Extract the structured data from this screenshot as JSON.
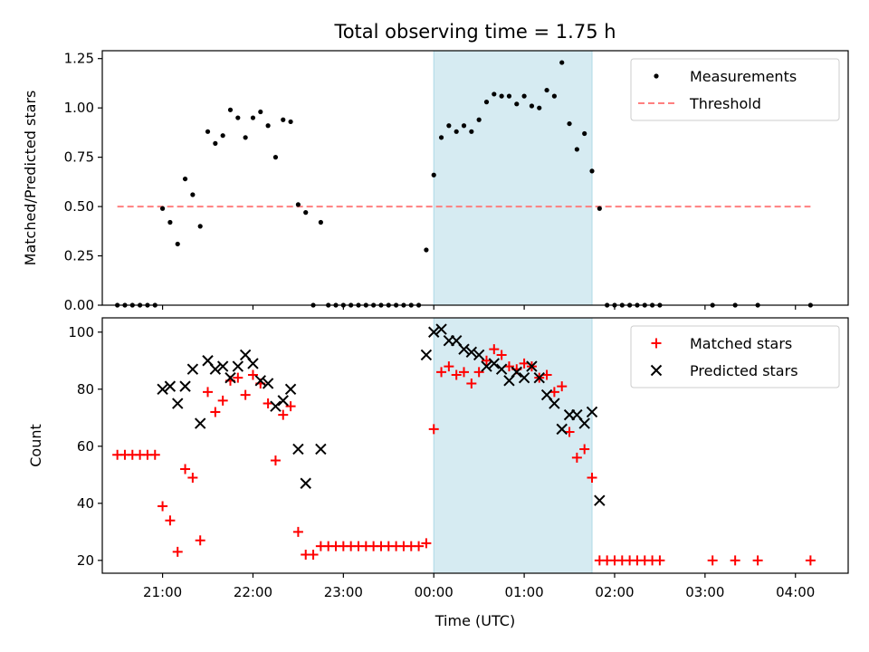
{
  "chart_data": [
    {
      "type": "scatter",
      "title": "Total observing time = 1.75 h",
      "ylabel": "Matched/Predicted stars",
      "xlim": [
        "20:20",
        "04:35"
      ],
      "ylim": [
        0,
        1.29
      ],
      "yticks": [
        "0.00",
        "0.25",
        "0.50",
        "0.75",
        "1.00",
        "1.25"
      ],
      "shaded_interval": [
        "00:00",
        "01:45"
      ],
      "shade_color": "#add8e6",
      "grid": false,
      "legend_position": "top-right",
      "legend": [
        "Measurements",
        "Threshold"
      ],
      "series": [
        {
          "name": "Measurements",
          "marker": "dot",
          "color": "#000000",
          "points": [
            [
              "20:30",
              0
            ],
            [
              "20:35",
              0
            ],
            [
              "20:40",
              0
            ],
            [
              "20:45",
              0
            ],
            [
              "20:50",
              0
            ],
            [
              "20:55",
              0
            ],
            [
              "21:00",
              0.49
            ],
            [
              "21:05",
              0.42
            ],
            [
              "21:10",
              0.31
            ],
            [
              "21:15",
              0.64
            ],
            [
              "21:20",
              0.56
            ],
            [
              "21:25",
              0.4
            ],
            [
              "21:30",
              0.88
            ],
            [
              "21:35",
              0.82
            ],
            [
              "21:40",
              0.86
            ],
            [
              "21:45",
              0.99
            ],
            [
              "21:50",
              0.95
            ],
            [
              "21:55",
              0.85
            ],
            [
              "22:00",
              0.95
            ],
            [
              "22:05",
              0.98
            ],
            [
              "22:10",
              0.91
            ],
            [
              "22:15",
              0.75
            ],
            [
              "22:20",
              0.94
            ],
            [
              "22:25",
              0.93
            ],
            [
              "22:30",
              0.51
            ],
            [
              "22:35",
              0.47
            ],
            [
              "22:40",
              0
            ],
            [
              "22:45",
              0.42
            ],
            [
              "22:50",
              0
            ],
            [
              "22:55",
              0
            ],
            [
              "23:00",
              0
            ],
            [
              "23:05",
              0
            ],
            [
              "23:10",
              0
            ],
            [
              "23:15",
              0
            ],
            [
              "23:20",
              0
            ],
            [
              "23:25",
              0
            ],
            [
              "23:30",
              0
            ],
            [
              "23:35",
              0
            ],
            [
              "23:40",
              0
            ],
            [
              "23:45",
              0
            ],
            [
              "23:50",
              0
            ],
            [
              "23:55",
              0.28
            ],
            [
              "00:00",
              0.66
            ],
            [
              "00:05",
              0.85
            ],
            [
              "00:10",
              0.91
            ],
            [
              "00:15",
              0.88
            ],
            [
              "00:20",
              0.91
            ],
            [
              "00:25",
              0.88
            ],
            [
              "00:30",
              0.94
            ],
            [
              "00:35",
              1.03
            ],
            [
              "00:40",
              1.07
            ],
            [
              "00:45",
              1.06
            ],
            [
              "00:50",
              1.06
            ],
            [
              "00:55",
              1.02
            ],
            [
              "01:00",
              1.06
            ],
            [
              "01:05",
              1.01
            ],
            [
              "01:10",
              1.0
            ],
            [
              "01:15",
              1.09
            ],
            [
              "01:20",
              1.06
            ],
            [
              "01:25",
              1.23
            ],
            [
              "01:30",
              0.92
            ],
            [
              "01:35",
              0.79
            ],
            [
              "01:40",
              0.87
            ],
            [
              "01:45",
              0.68
            ],
            [
              "01:50",
              0.49
            ],
            [
              "01:55",
              0
            ],
            [
              "02:00",
              0
            ],
            [
              "02:05",
              0
            ],
            [
              "02:10",
              0
            ],
            [
              "02:15",
              0
            ],
            [
              "02:20",
              0
            ],
            [
              "02:25",
              0
            ],
            [
              "02:30",
              0
            ],
            [
              "03:05",
              0
            ],
            [
              "03:20",
              0
            ],
            [
              "03:35",
              0
            ],
            [
              "04:10",
              0
            ]
          ]
        },
        {
          "name": "Threshold",
          "style": "dashed-line",
          "color": "#ff7f7f",
          "x": [
            "20:30",
            "04:10"
          ],
          "y": [
            0.5,
            0.5
          ]
        }
      ]
    },
    {
      "type": "scatter",
      "xlabel": "Time (UTC)",
      "ylabel": "Count",
      "xticks": [
        "21:00",
        "22:00",
        "23:00",
        "00:00",
        "01:00",
        "02:00",
        "03:00",
        "04:00"
      ],
      "xlim": [
        "20:20",
        "04:35"
      ],
      "ylim": [
        15.5,
        105
      ],
      "yticks": [
        "20",
        "40",
        "60",
        "80",
        "100"
      ],
      "shaded_interval": [
        "00:00",
        "01:45"
      ],
      "shade_color": "#add8e6",
      "grid": false,
      "legend_position": "top-right",
      "legend": [
        "Matched stars",
        "Predicted stars"
      ],
      "series": [
        {
          "name": "Matched stars",
          "marker": "plus",
          "color": "#ff0000",
          "points": [
            [
              "20:30",
              57
            ],
            [
              "20:35",
              57
            ],
            [
              "20:40",
              57
            ],
            [
              "20:45",
              57
            ],
            [
              "20:50",
              57
            ],
            [
              "20:55",
              57
            ],
            [
              "21:00",
              39
            ],
            [
              "21:05",
              34
            ],
            [
              "21:10",
              23
            ],
            [
              "21:15",
              52
            ],
            [
              "21:20",
              49
            ],
            [
              "21:25",
              27
            ],
            [
              "21:30",
              79
            ],
            [
              "21:35",
              72
            ],
            [
              "21:40",
              76
            ],
            [
              "21:45",
              83
            ],
            [
              "21:50",
              84
            ],
            [
              "21:55",
              78
            ],
            [
              "22:00",
              85
            ],
            [
              "22:05",
              82
            ],
            [
              "22:10",
              75
            ],
            [
              "22:15",
              55
            ],
            [
              "22:20",
              71
            ],
            [
              "22:25",
              74
            ],
            [
              "22:30",
              30
            ],
            [
              "22:35",
              22
            ],
            [
              "22:40",
              22
            ],
            [
              "22:45",
              25
            ],
            [
              "22:50",
              25
            ],
            [
              "22:55",
              25
            ],
            [
              "23:00",
              25
            ],
            [
              "23:05",
              25
            ],
            [
              "23:10",
              25
            ],
            [
              "23:15",
              25
            ],
            [
              "23:20",
              25
            ],
            [
              "23:25",
              25
            ],
            [
              "23:30",
              25
            ],
            [
              "23:35",
              25
            ],
            [
              "23:40",
              25
            ],
            [
              "23:45",
              25
            ],
            [
              "23:50",
              25
            ],
            [
              "23:55",
              26
            ],
            [
              "00:00",
              66
            ],
            [
              "00:05",
              86
            ],
            [
              "00:10",
              88
            ],
            [
              "00:15",
              85
            ],
            [
              "00:20",
              86
            ],
            [
              "00:25",
              82
            ],
            [
              "00:30",
              86
            ],
            [
              "00:35",
              90
            ],
            [
              "00:40",
              94
            ],
            [
              "00:45",
              92
            ],
            [
              "00:50",
              88
            ],
            [
              "00:55",
              87
            ],
            [
              "01:00",
              89
            ],
            [
              "01:05",
              88
            ],
            [
              "01:10",
              84
            ],
            [
              "01:15",
              85
            ],
            [
              "01:20",
              79
            ],
            [
              "01:25",
              81
            ],
            [
              "01:30",
              65
            ],
            [
              "01:35",
              56
            ],
            [
              "01:40",
              59
            ],
            [
              "01:45",
              49
            ],
            [
              "01:50",
              20
            ],
            [
              "01:55",
              20
            ],
            [
              "02:00",
              20
            ],
            [
              "02:05",
              20
            ],
            [
              "02:10",
              20
            ],
            [
              "02:15",
              20
            ],
            [
              "02:20",
              20
            ],
            [
              "02:25",
              20
            ],
            [
              "02:30",
              20
            ],
            [
              "03:05",
              20
            ],
            [
              "03:20",
              20
            ],
            [
              "03:35",
              20
            ],
            [
              "04:10",
              20
            ]
          ]
        },
        {
          "name": "Predicted stars",
          "marker": "x",
          "color": "#000000",
          "points": [
            [
              "21:00",
              80
            ],
            [
              "21:05",
              81
            ],
            [
              "21:10",
              75
            ],
            [
              "21:15",
              81
            ],
            [
              "21:20",
              87
            ],
            [
              "21:25",
              68
            ],
            [
              "21:30",
              90
            ],
            [
              "21:35",
              87
            ],
            [
              "21:40",
              88
            ],
            [
              "21:45",
              84
            ],
            [
              "21:50",
              88
            ],
            [
              "21:55",
              92
            ],
            [
              "22:00",
              89
            ],
            [
              "22:05",
              83
            ],
            [
              "22:10",
              82
            ],
            [
              "22:15",
              74
            ],
            [
              "22:20",
              76
            ],
            [
              "22:25",
              80
            ],
            [
              "22:30",
              59
            ],
            [
              "22:35",
              47
            ],
            [
              "22:45",
              59
            ],
            [
              "23:55",
              92
            ],
            [
              "00:00",
              100
            ],
            [
              "00:05",
              101
            ],
            [
              "00:10",
              97
            ],
            [
              "00:15",
              97
            ],
            [
              "00:20",
              94
            ],
            [
              "00:25",
              93
            ],
            [
              "00:30",
              92
            ],
            [
              "00:35",
              88
            ],
            [
              "00:40",
              89
            ],
            [
              "00:45",
              87
            ],
            [
              "00:50",
              83
            ],
            [
              "00:55",
              86
            ],
            [
              "01:00",
              84
            ],
            [
              "01:05",
              88
            ],
            [
              "01:10",
              84
            ],
            [
              "01:15",
              78
            ],
            [
              "01:20",
              75
            ],
            [
              "01:25",
              66
            ],
            [
              "01:30",
              71
            ],
            [
              "01:35",
              71
            ],
            [
              "01:40",
              68
            ],
            [
              "01:45",
              72
            ],
            [
              "01:50",
              41
            ]
          ]
        }
      ]
    }
  ]
}
